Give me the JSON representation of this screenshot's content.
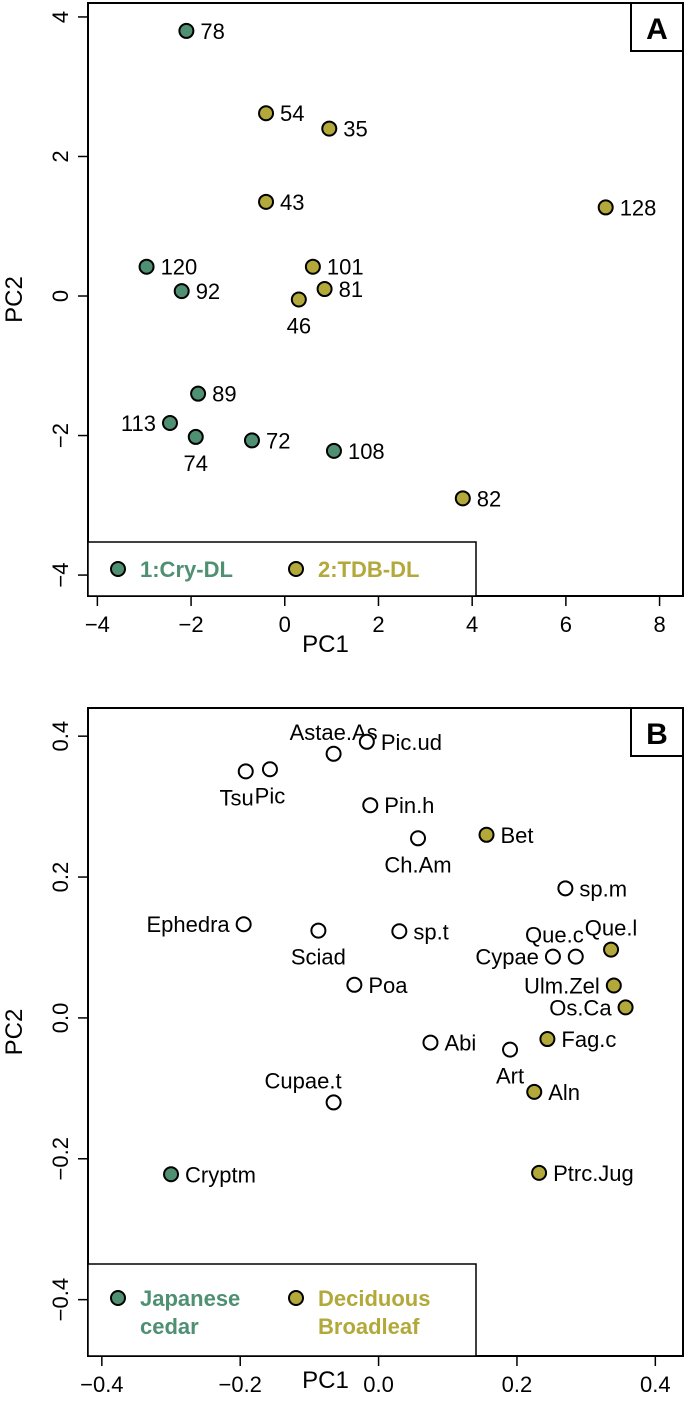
{
  "chart_data": [
    {
      "type": "scatter",
      "panel_label": "A",
      "xlabel": "PC1",
      "ylabel": "PC2",
      "xlim": [
        -4.2,
        8.5
      ],
      "ylim": [
        -4.3,
        4.2
      ],
      "xticks": [
        -4,
        -2,
        0,
        2,
        4,
        6,
        8
      ],
      "yticks": [
        -4,
        -2,
        0,
        2,
        4
      ],
      "colors": {
        "g1": "#4f8f72",
        "g2": "#b2a93a"
      },
      "legend": {
        "placement": "bottom-left",
        "entries": [
          {
            "label": "1:Cry-DL",
            "group": "g1"
          },
          {
            "label": "2:TDB-DL",
            "group": "g2"
          }
        ]
      },
      "points": [
        {
          "label": "78",
          "x": -2.1,
          "y": 3.8,
          "group": "g1",
          "pos": "right"
        },
        {
          "label": "54",
          "x": -0.4,
          "y": 2.62,
          "group": "g2",
          "pos": "right"
        },
        {
          "label": "35",
          "x": 0.95,
          "y": 2.4,
          "group": "g2",
          "pos": "right"
        },
        {
          "label": "43",
          "x": -0.4,
          "y": 1.35,
          "group": "g2",
          "pos": "right"
        },
        {
          "label": "128",
          "x": 6.85,
          "y": 1.27,
          "group": "g2",
          "pos": "right"
        },
        {
          "label": "120",
          "x": -2.95,
          "y": 0.42,
          "group": "g1",
          "pos": "right"
        },
        {
          "label": "101",
          "x": 0.6,
          "y": 0.42,
          "group": "g2",
          "pos": "right"
        },
        {
          "label": "92",
          "x": -2.2,
          "y": 0.07,
          "group": "g1",
          "pos": "right"
        },
        {
          "label": "81",
          "x": 0.85,
          "y": 0.1,
          "group": "g2",
          "pos": "right"
        },
        {
          "label": "46",
          "x": 0.3,
          "y": -0.05,
          "group": "g2",
          "pos": "below"
        },
        {
          "label": "89",
          "x": -1.85,
          "y": -1.4,
          "group": "g1",
          "pos": "right"
        },
        {
          "label": "113",
          "x": -2.45,
          "y": -1.82,
          "group": "g1",
          "pos": "left"
        },
        {
          "label": "74",
          "x": -1.9,
          "y": -2.02,
          "group": "g1",
          "pos": "below"
        },
        {
          "label": "72",
          "x": -0.7,
          "y": -2.07,
          "group": "g1",
          "pos": "right"
        },
        {
          "label": "108",
          "x": 1.05,
          "y": -2.22,
          "group": "g1",
          "pos": "right"
        },
        {
          "label": "82",
          "x": 3.8,
          "y": -2.9,
          "group": "g2",
          "pos": "right"
        }
      ]
    },
    {
      "type": "scatter",
      "panel_label": "B",
      "xlabel": "PC1",
      "ylabel": "PC2",
      "xlim": [
        -0.42,
        0.44
      ],
      "ylim": [
        -0.48,
        0.44
      ],
      "xticks": [
        -0.4,
        -0.2,
        0.0,
        0.2,
        0.4
      ],
      "xtick_labels": [
        "−0.4",
        "−0.2",
        "0.0",
        "0.2",
        "0.4"
      ],
      "yticks": [
        -0.4,
        -0.2,
        0.0,
        0.2,
        0.4
      ],
      "ytick_labels": [
        "−0.4",
        "−0.2",
        "0.0",
        "0.2",
        "0.4"
      ],
      "colors": {
        "g1": "#4f8f72",
        "g2": "#b2a93a",
        "none": "#ffffff"
      },
      "legend": {
        "placement": "bottom-left",
        "entries": [
          {
            "label1": "Japanese",
            "label2": "cedar",
            "group": "g1"
          },
          {
            "label1": "Deciduous",
            "label2": "Broadleaf",
            "group": "g2"
          }
        ]
      },
      "points": [
        {
          "label": "Astae.As",
          "x": -0.065,
          "y": 0.375,
          "group": "none",
          "pos": "above"
        },
        {
          "label": "Pic.ud",
          "x": -0.017,
          "y": 0.392,
          "group": "none",
          "pos": "right"
        },
        {
          "label": "Tsu",
          "x": -0.192,
          "y": 0.35,
          "group": "none",
          "pos": "below-left"
        },
        {
          "label": "Pic",
          "x": -0.157,
          "y": 0.353,
          "group": "none",
          "pos": "below"
        },
        {
          "label": "Pin.h",
          "x": -0.012,
          "y": 0.302,
          "group": "none",
          "pos": "right"
        },
        {
          "label": "Bet",
          "x": 0.156,
          "y": 0.26,
          "group": "g2",
          "pos": "right"
        },
        {
          "label": "Ch.Am",
          "x": 0.057,
          "y": 0.255,
          "group": "none",
          "pos": "below"
        },
        {
          "label": "sp.m",
          "x": 0.27,
          "y": 0.184,
          "group": "none",
          "pos": "right"
        },
        {
          "label": "Ephedra",
          "x": -0.195,
          "y": 0.133,
          "group": "none",
          "pos": "left"
        },
        {
          "label": "Sciad",
          "x": -0.087,
          "y": 0.124,
          "group": "none",
          "pos": "below"
        },
        {
          "label": "sp.t",
          "x": 0.03,
          "y": 0.123,
          "group": "none",
          "pos": "right"
        },
        {
          "label": "Que.c",
          "x": 0.285,
          "y": 0.087,
          "group": "none",
          "pos": "above-left"
        },
        {
          "label": "Cypae",
          "x": 0.252,
          "y": 0.087,
          "group": "none",
          "pos": "left"
        },
        {
          "label": "Que.l",
          "x": 0.336,
          "y": 0.097,
          "group": "g2",
          "pos": "above"
        },
        {
          "label": "Poa",
          "x": -0.035,
          "y": 0.047,
          "group": "none",
          "pos": "right"
        },
        {
          "label": "Ulm.Zel",
          "x": 0.34,
          "y": 0.046,
          "group": "g2",
          "pos": "left"
        },
        {
          "label": "Os.Ca",
          "x": 0.357,
          "y": 0.015,
          "group": "g2",
          "pos": "left"
        },
        {
          "label": "Abi",
          "x": 0.075,
          "y": -0.035,
          "group": "none",
          "pos": "right"
        },
        {
          "label": "Fag.c",
          "x": 0.244,
          "y": -0.03,
          "group": "g2",
          "pos": "right"
        },
        {
          "label": "Art",
          "x": 0.19,
          "y": -0.045,
          "group": "none",
          "pos": "below"
        },
        {
          "label": "Aln",
          "x": 0.225,
          "y": -0.105,
          "group": "g2",
          "pos": "right"
        },
        {
          "label": "Cupae.t",
          "x": -0.065,
          "y": -0.12,
          "group": "none",
          "pos": "above-left"
        },
        {
          "label": "Cryptm",
          "x": -0.3,
          "y": -0.222,
          "group": "g1",
          "pos": "right"
        },
        {
          "label": "Ptrc.Jug",
          "x": 0.232,
          "y": -0.22,
          "group": "g2",
          "pos": "right"
        }
      ]
    }
  ]
}
